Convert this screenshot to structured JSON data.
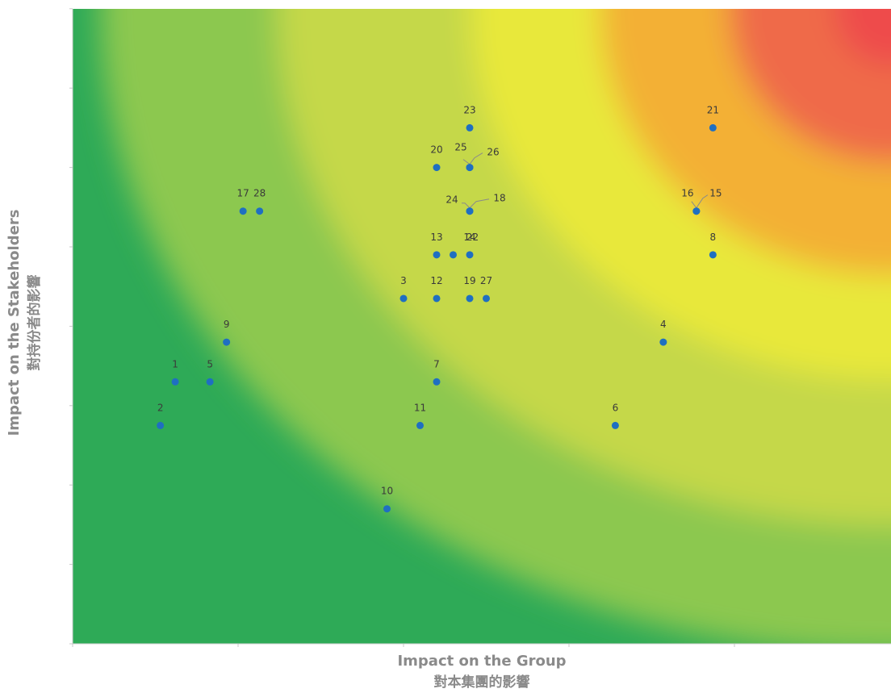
{
  "chart_data": {
    "type": "scatter",
    "title": "",
    "xlabel": "Impact on the Group",
    "xlabel_zh": "對本集團的影響",
    "ylabel": "Impact on the Stakeholders",
    "ylabel_zh": "對持份者的影響",
    "xlim": [
      0,
      4
    ],
    "ylim": [
      0,
      8
    ],
    "grid": false,
    "background": "heatmap gradient from green (low impact) through yellow to red (high impact, top-right)",
    "colors": {
      "point": "#1f6fc1",
      "low": "#2eaa57",
      "mid": "#e8e83a",
      "high": "#ee4b4b",
      "axis_title": "#8a8a8a"
    },
    "points": [
      {
        "label": "1",
        "x": 0.62,
        "y": 3.3
      },
      {
        "label": "2",
        "x": 0.53,
        "y": 2.75
      },
      {
        "label": "3",
        "x": 2.0,
        "y": 4.35
      },
      {
        "label": "4",
        "x": 3.57,
        "y": 3.8
      },
      {
        "label": "5",
        "x": 0.83,
        "y": 3.3
      },
      {
        "label": "6",
        "x": 3.28,
        "y": 2.75
      },
      {
        "label": "7",
        "x": 2.2,
        "y": 3.3
      },
      {
        "label": "8",
        "x": 3.87,
        "y": 4.9
      },
      {
        "label": "9",
        "x": 0.93,
        "y": 3.8
      },
      {
        "label": "10",
        "x": 1.9,
        "y": 1.7
      },
      {
        "label": "11",
        "x": 2.1,
        "y": 2.75
      },
      {
        "label": "12",
        "x": 2.2,
        "y": 4.35
      },
      {
        "label": "13",
        "x": 2.2,
        "y": 4.9
      },
      {
        "label": "14",
        "x": 2.4,
        "y": 4.9
      },
      {
        "label": "15",
        "x": 3.77,
        "y": 5.45
      },
      {
        "label": "16",
        "x": 3.77,
        "y": 5.45
      },
      {
        "label": "17",
        "x": 1.03,
        "y": 5.45
      },
      {
        "label": "18",
        "x": 2.4,
        "y": 5.45
      },
      {
        "label": "19",
        "x": 2.4,
        "y": 4.35
      },
      {
        "label": "20",
        "x": 2.2,
        "y": 6.0
      },
      {
        "label": "21",
        "x": 3.87,
        "y": 6.5
      },
      {
        "label": "22",
        "x": 2.3,
        "y": 4.9
      },
      {
        "label": "23",
        "x": 2.4,
        "y": 6.5
      },
      {
        "label": "24",
        "x": 2.4,
        "y": 5.45
      },
      {
        "label": "25",
        "x": 2.4,
        "y": 6.0
      },
      {
        "label": "26",
        "x": 2.4,
        "y": 6.0
      },
      {
        "label": "27",
        "x": 2.5,
        "y": 4.35
      },
      {
        "label": "28",
        "x": 1.13,
        "y": 5.45
      }
    ]
  }
}
